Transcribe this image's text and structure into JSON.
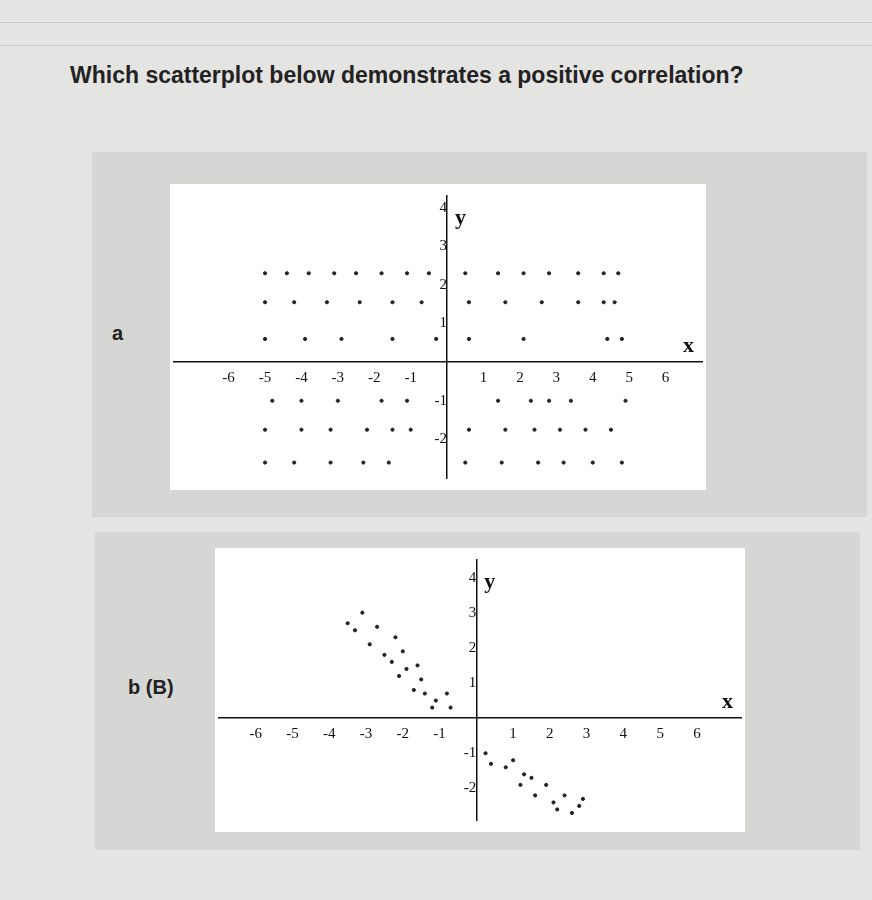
{
  "question": "Which scatterplot below demonstrates a positive correlation?",
  "chart_data": [
    {
      "type": "scatter",
      "label": "a",
      "xlabel": "x",
      "ylabel": "y",
      "xlim": [
        -7.5,
        7
      ],
      "ylim": [
        -3,
        4.3
      ],
      "xticks": [
        -6,
        -5,
        -4,
        -3,
        -2,
        -1,
        1,
        2,
        3,
        4,
        5,
        6
      ],
      "yticks": [
        -2,
        -1,
        1,
        2,
        3,
        4
      ],
      "grid": false,
      "color": "#222222",
      "marker": "circle",
      "x": [
        -5,
        -4.4,
        -3.8,
        -3.1,
        -2.5,
        -1.8,
        -1.1,
        -0.5,
        0.5,
        1.4,
        2.1,
        2.8,
        3.6,
        4.3,
        4.7,
        -5,
        -4.2,
        -3.3,
        -2.4,
        -1.5,
        -0.7,
        0.6,
        1.6,
        2.6,
        3.6,
        4.3,
        4.6,
        -5,
        -3.9,
        -2.9,
        -1.5,
        -0.3,
        0.6,
        2.1,
        4.4,
        4.8,
        -4.8,
        -4,
        -3,
        -1.8,
        -1.1,
        1.4,
        2.3,
        2.8,
        3.4,
        4.9,
        -5,
        -4,
        -3.2,
        -2.2,
        -1.5,
        -1,
        0.6,
        1.6,
        2.4,
        3.1,
        3.8,
        4.5,
        -5,
        -4.2,
        -3.2,
        -2.3,
        -1.6,
        0.5,
        1.5,
        2.5,
        3.2,
        4,
        4.8
      ],
      "values": [
        2.3,
        2.3,
        2.3,
        2.3,
        2.3,
        2.3,
        2.3,
        2.3,
        2.3,
        2.3,
        2.3,
        2.3,
        2.3,
        2.3,
        2.3,
        1.55,
        1.55,
        1.55,
        1.55,
        1.55,
        1.55,
        1.55,
        1.55,
        1.55,
        1.55,
        1.55,
        1.55,
        0.6,
        0.6,
        0.6,
        0.6,
        0.6,
        0.6,
        0.6,
        0.6,
        0.6,
        -1,
        -1,
        -1,
        -1,
        -1,
        -1,
        -1,
        -1,
        -1,
        -1,
        -1.75,
        -1.75,
        -1.75,
        -1.75,
        -1.75,
        -1.75,
        -1.75,
        -1.75,
        -1.75,
        -1.75,
        -1.75,
        -1.75,
        -2.6,
        -2.6,
        -2.6,
        -2.6,
        -2.6,
        -2.6,
        -2.6,
        -2.6,
        -2.6,
        -2.6,
        -2.6
      ]
    },
    {
      "type": "scatter",
      "label": "b (B)",
      "xlabel": "x",
      "ylabel": "y",
      "xlim": [
        -7,
        7.2
      ],
      "ylim": [
        -2.9,
        4.5
      ],
      "xticks": [
        -6,
        -5,
        -4,
        -3,
        -2,
        -1,
        1,
        2,
        3,
        4,
        5,
        6
      ],
      "yticks": [
        -2,
        -1,
        1,
        2,
        3,
        4
      ],
      "grid": false,
      "color": "#222222",
      "marker": "circle",
      "x": [
        -3.5,
        -3.1,
        -3.3,
        -2.7,
        -2.9,
        -2.2,
        -2.5,
        -2.3,
        -2.0,
        -1.9,
        -1.6,
        -1.5,
        -2.1,
        -1.4,
        -1.1,
        -0.8,
        -0.7,
        -1.2,
        -1.7,
        0.25,
        0.4,
        0.8,
        1.0,
        1.3,
        1.2,
        1.6,
        1.9,
        1.5,
        2.1,
        2.4,
        2.2,
        2.8,
        2.6,
        2.9
      ],
      "values": [
        2.7,
        3.0,
        2.5,
        2.6,
        2.1,
        2.3,
        1.8,
        1.6,
        1.9,
        1.4,
        1.5,
        1.1,
        1.2,
        0.7,
        0.5,
        0.7,
        0.3,
        0.3,
        0.8,
        -1.0,
        -1.3,
        -1.4,
        -1.2,
        -1.6,
        -1.9,
        -2.2,
        -1.9,
        -1.7,
        -2.4,
        -2.2,
        -2.6,
        -2.5,
        -2.7,
        -2.3
      ]
    }
  ]
}
